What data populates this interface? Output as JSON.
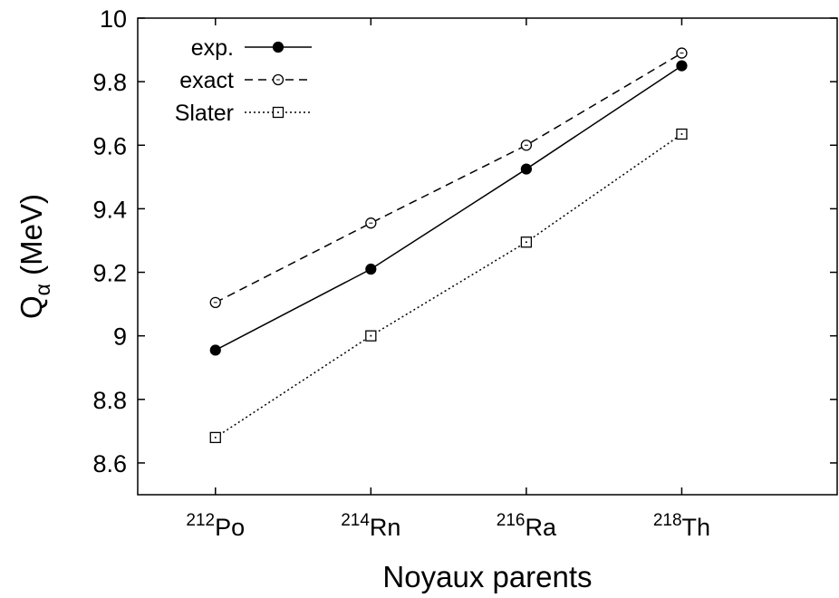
{
  "chart_data": {
    "type": "line",
    "title": "",
    "xlabel": "Noyaux parents",
    "ylabel": {
      "main": "Q",
      "sub": "α",
      "unit": " (MeV)"
    },
    "xlim": [
      211,
      220
    ],
    "ylim": [
      8.5,
      10.0
    ],
    "yticks": [
      8.6,
      8.8,
      9.0,
      9.2,
      9.4,
      9.6,
      9.8,
      10.0
    ],
    "ytick_labels": [
      "8.6",
      "8.8",
      "9",
      "9.2",
      "9.4",
      "9.6",
      "9.8",
      "10"
    ],
    "categories": [
      {
        "x": 212,
        "mass": "212",
        "element": "Po"
      },
      {
        "x": 214,
        "mass": "214",
        "element": "Rn"
      },
      {
        "x": 216,
        "mass": "216",
        "element": "Ra"
      },
      {
        "x": 218,
        "mass": "218",
        "element": "Th"
      }
    ],
    "grid": false,
    "legend_position": "top-left",
    "series": [
      {
        "name": "exp.",
        "style": "solid",
        "marker": "filled-circle",
        "values": [
          8.955,
          9.21,
          9.525,
          9.85
        ]
      },
      {
        "name": "exact",
        "style": "dashed",
        "marker": "open-circle",
        "values": [
          9.105,
          9.355,
          9.6,
          9.89
        ]
      },
      {
        "name": "Slater",
        "style": "dotted",
        "marker": "open-square",
        "values": [
          8.68,
          9.0,
          9.295,
          9.635
        ]
      }
    ],
    "colors": {
      "line": "#000000",
      "background": "#ffffff"
    }
  }
}
